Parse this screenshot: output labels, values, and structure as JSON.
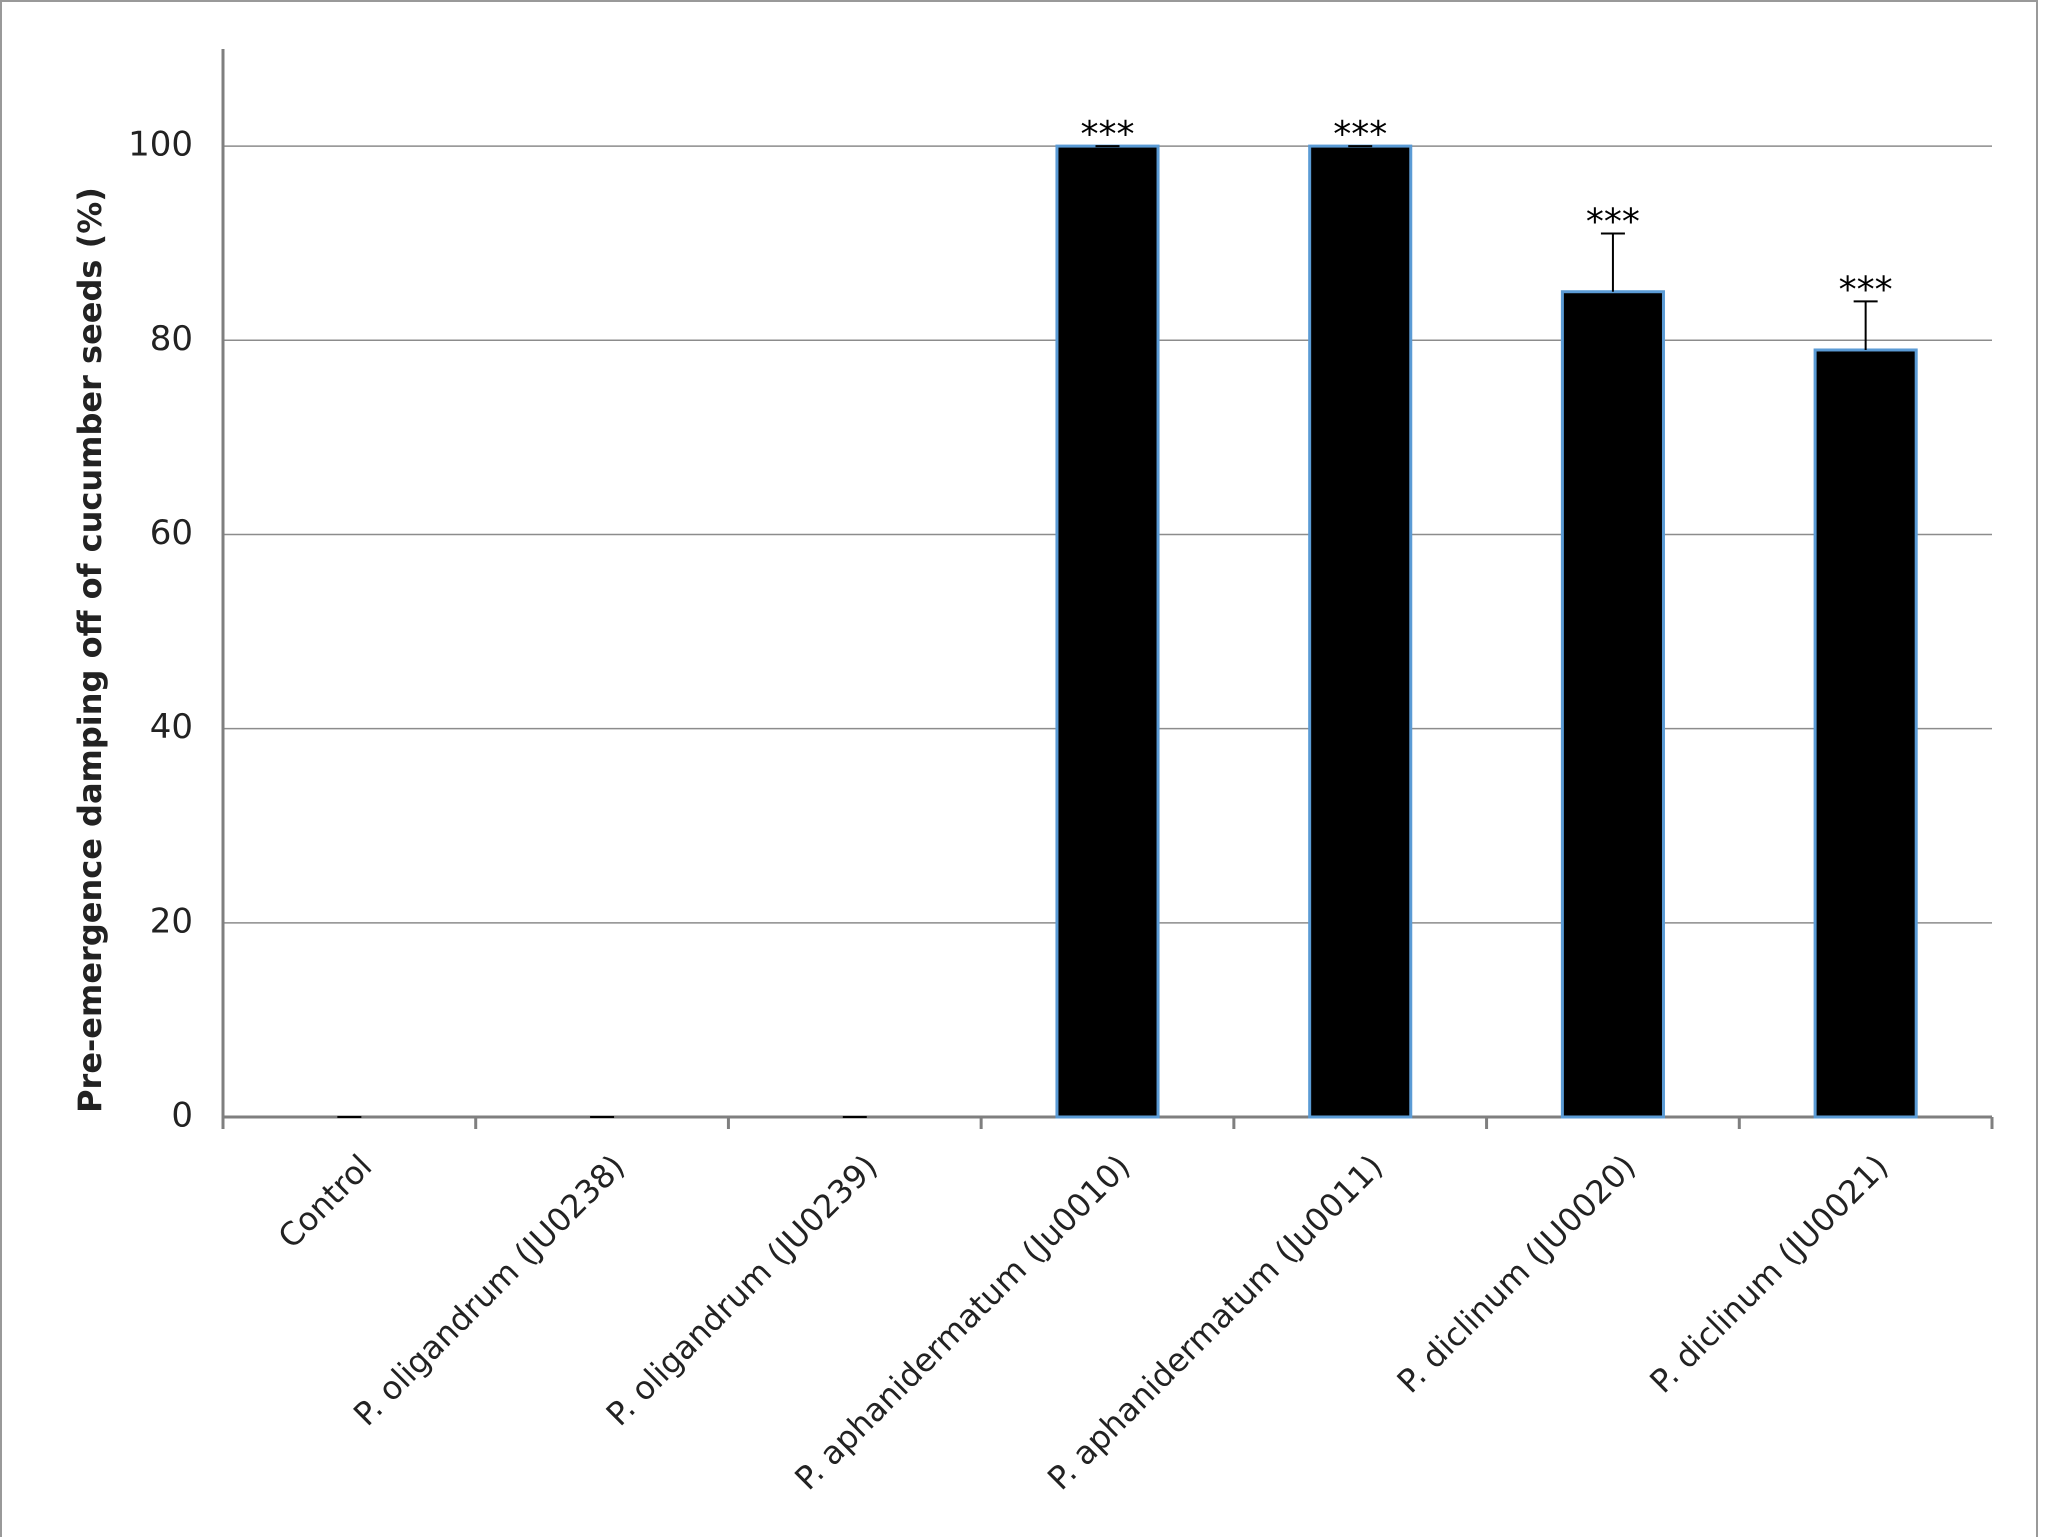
{
  "chart_data": {
    "type": "bar",
    "y_label": "Pre-emergence damping  off of cucumber seeds (%)",
    "categories": [
      "Control",
      "P. oligandrum (JU0238)",
      "P. oligandrum (JU0239)",
      "P. aphanidermatum (Ju0010)",
      "P. aphanidermatum (Ju0011)",
      "P. diclinum (JU0020)",
      "P. diclinum (JU0021)"
    ],
    "values": [
      0,
      0,
      0,
      100,
      100,
      85,
      79
    ],
    "errors": [
      0,
      0,
      0,
      0,
      0,
      6,
      5
    ],
    "significance": [
      null,
      null,
      null,
      "***",
      "***",
      "***",
      "***"
    ],
    "color": "#000000",
    "edge_color": "#5b9bd5",
    "ylim": [
      0,
      110
    ],
    "yticks": [
      0,
      20,
      40,
      60,
      80,
      100
    ],
    "grid": true
  }
}
